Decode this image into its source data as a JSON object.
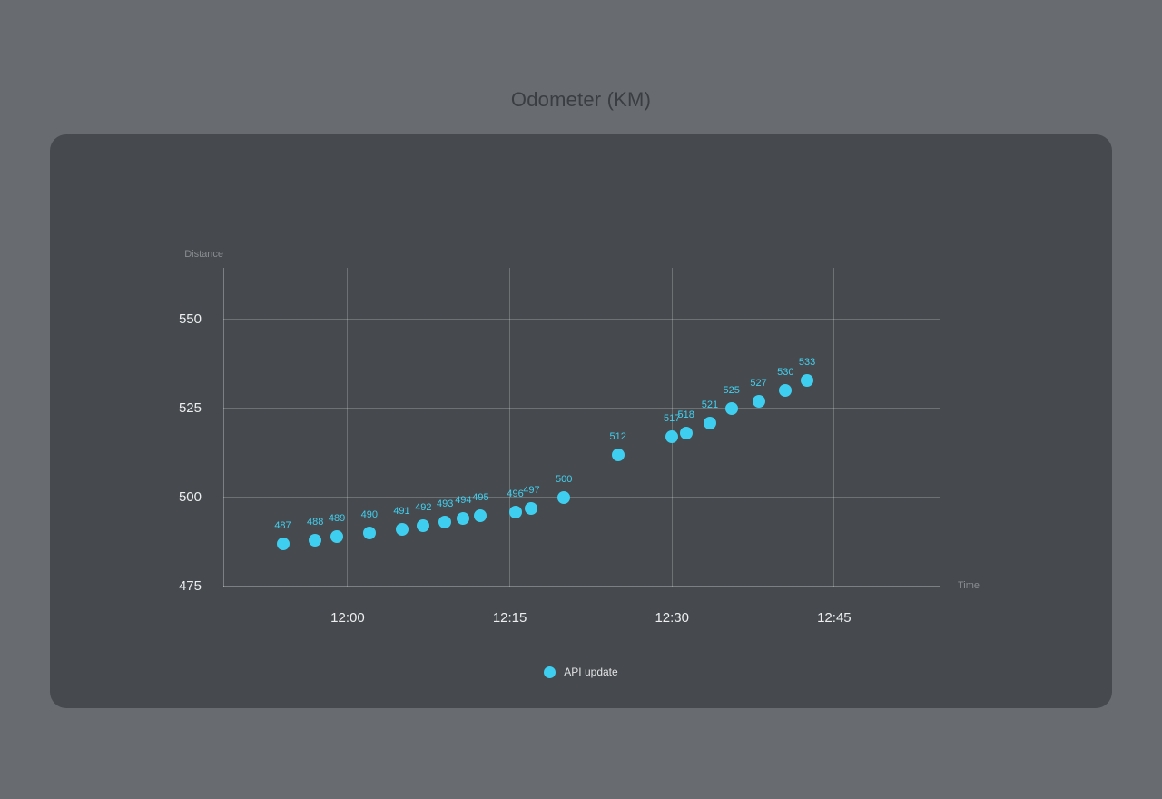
{
  "chart_data": {
    "type": "scatter",
    "title": "Odometer (KM)",
    "xlabel": "Time",
    "ylabel": "Distance",
    "legend_label": "API update",
    "legend_position": "bottom",
    "grid": true,
    "xlim": [
      -11.5,
      54.75
    ],
    "ylim": [
      475,
      564.5
    ],
    "x_unit": "minutes relative to 12:00 (estimated from dot positions)",
    "x_ticks": [
      {
        "t": 0,
        "label": "12:00"
      },
      {
        "t": 15,
        "label": "12:15"
      },
      {
        "t": 30,
        "label": "12:30"
      },
      {
        "t": 45,
        "label": "12:45"
      }
    ],
    "y_ticks": [
      {
        "v": 475,
        "label": "475"
      },
      {
        "v": 500,
        "label": "500"
      },
      {
        "v": 525,
        "label": "525"
      },
      {
        "v": 550,
        "label": "550"
      }
    ],
    "points": [
      {
        "x_minutes_after_1200": -6,
        "value": 487
      },
      {
        "x_minutes_after_1200": -3,
        "value": 488
      },
      {
        "x_minutes_after_1200": -1,
        "value": 489
      },
      {
        "x_minutes_after_1200": 2,
        "value": 490
      },
      {
        "x_minutes_after_1200": 5,
        "value": 491
      },
      {
        "x_minutes_after_1200": 7,
        "value": 492
      },
      {
        "x_minutes_after_1200": 9,
        "value": 493
      },
      {
        "x_minutes_after_1200": 10.7,
        "value": 494
      },
      {
        "x_minutes_after_1200": 12.3,
        "value": 495
      },
      {
        "x_minutes_after_1200": 15.5,
        "value": 496
      },
      {
        "x_minutes_after_1200": 17,
        "value": 497
      },
      {
        "x_minutes_after_1200": 20,
        "value": 500
      },
      {
        "x_minutes_after_1200": 25,
        "value": 512
      },
      {
        "x_minutes_after_1200": 30,
        "value": 517
      },
      {
        "x_minutes_after_1200": 31.3,
        "value": 518
      },
      {
        "x_minutes_after_1200": 33.5,
        "value": 521
      },
      {
        "x_minutes_after_1200": 35.5,
        "value": 525
      },
      {
        "x_minutes_after_1200": 38,
        "value": 527
      },
      {
        "x_minutes_after_1200": 40.5,
        "value": 530
      },
      {
        "x_minutes_after_1200": 42.5,
        "value": 533
      }
    ]
  },
  "colors": {
    "page_bg": "#686c70",
    "card_bg": "#46494d",
    "title_text": "#3a3e43",
    "tick_text": "#eceef0",
    "axis_name_text": "#8a8e92",
    "gridline": "rgba(255,255,255,0.22)",
    "axisline": "rgba(255,255,255,0.30)",
    "marker": "#3ecff0",
    "point_label": "#41d1f1",
    "legend_text": "#e0e2e4"
  }
}
